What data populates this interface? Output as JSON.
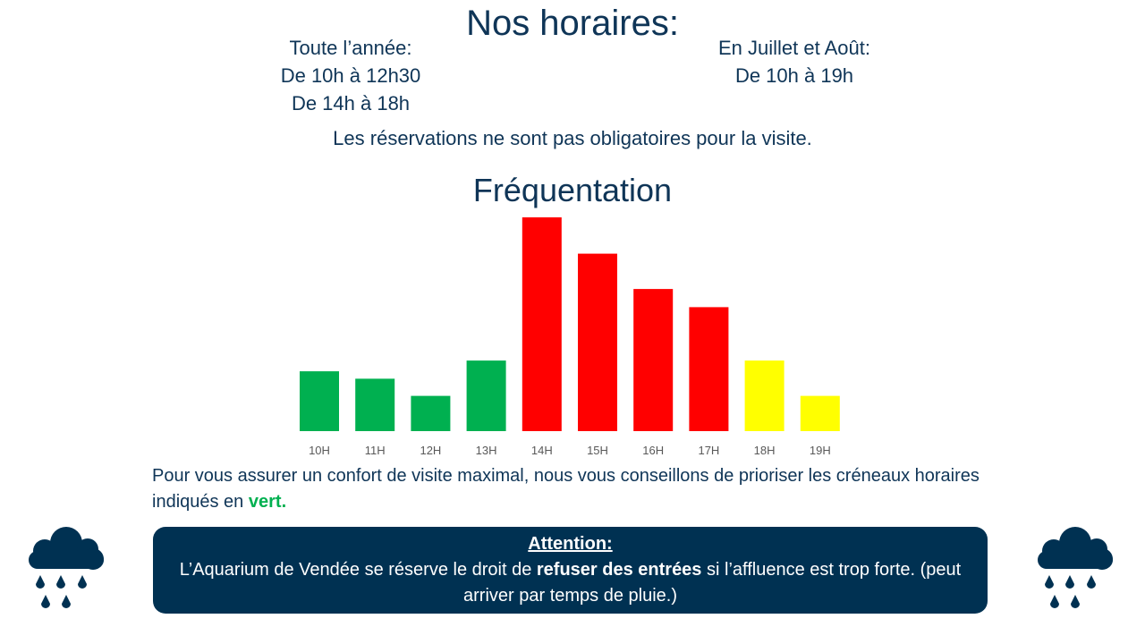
{
  "header": {
    "title": "Nos horaires:"
  },
  "hours": {
    "year_round": {
      "label": "Toute l’année:",
      "slots": [
        "De 10h à 12h30",
        "De 14h à 18h"
      ]
    },
    "summer": {
      "label": "En Juillet et Août:",
      "slots": [
        "De 10h à 19h"
      ]
    }
  },
  "reservation_note": "Les réservations ne sont pas obligatoires pour la visite.",
  "chart_data": {
    "type": "bar",
    "title": "Fréquentation",
    "xlabel": "",
    "ylabel": "",
    "categories": [
      "10H",
      "11H",
      "12H",
      "13H",
      "14H",
      "15H",
      "16H",
      "17H",
      "18H",
      "19H"
    ],
    "values": [
      28,
      24.5,
      16.5,
      33,
      100,
      83,
      66.5,
      58,
      33,
      16.5
    ],
    "bar_colors": [
      "#00b050",
      "#00b050",
      "#00b050",
      "#00b050",
      "#ff0000",
      "#ff0000",
      "#ff0000",
      "#ff0000",
      "#ffff00",
      "#ffff00"
    ],
    "ylim": [
      0,
      100
    ],
    "grid": false,
    "legend": "none"
  },
  "advice": {
    "text_before": "Pour vous assurer un confort de visite maximal, nous vous conseillons de prioriser les créneaux horaires indiqués en ",
    "highlight": "vert.",
    "highlight_color": "#00b050"
  },
  "attention": {
    "title": "Attention:",
    "text_before": "L’Aquarium de Vendée se réserve le droit de ",
    "bold": "refuser des entrées",
    "text_after": " si l’affluence est trop forte. (peut arriver par temps de pluie.)"
  },
  "icons": {
    "left": "rain-cloud-icon",
    "right": "rain-cloud-icon",
    "color": "#003152"
  }
}
